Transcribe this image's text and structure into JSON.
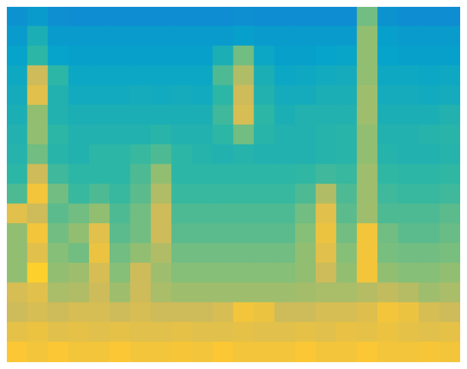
{
  "chart_data": {
    "type": "heatmap",
    "grid": false,
    "tick_labels": false,
    "cells": [
      [
        0.27,
        0.3,
        0.26,
        0.25,
        0.25,
        0.25,
        0.25,
        0.25,
        0.25,
        0.25,
        0.25,
        0.26,
        0.25,
        0.25,
        0.25,
        0.25,
        0.25,
        0.55,
        0.27,
        0.25,
        0.25,
        0.25
      ],
      [
        0.3,
        0.4,
        0.3,
        0.3,
        0.3,
        0.3,
        0.3,
        0.3,
        0.3,
        0.3,
        0.3,
        0.32,
        0.3,
        0.3,
        0.3,
        0.3,
        0.3,
        0.6,
        0.32,
        0.3,
        0.3,
        0.3
      ],
      [
        0.33,
        0.45,
        0.33,
        0.32,
        0.32,
        0.32,
        0.32,
        0.32,
        0.32,
        0.32,
        0.4,
        0.55,
        0.35,
        0.32,
        0.32,
        0.33,
        0.34,
        0.6,
        0.33,
        0.32,
        0.32,
        0.32
      ],
      [
        0.36,
        0.7,
        0.45,
        0.35,
        0.35,
        0.35,
        0.35,
        0.35,
        0.35,
        0.35,
        0.5,
        0.65,
        0.4,
        0.35,
        0.36,
        0.37,
        0.38,
        0.6,
        0.36,
        0.36,
        0.35,
        0.36
      ],
      [
        0.38,
        0.75,
        0.42,
        0.37,
        0.37,
        0.37,
        0.38,
        0.37,
        0.38,
        0.37,
        0.45,
        0.7,
        0.42,
        0.38,
        0.38,
        0.4,
        0.4,
        0.62,
        0.38,
        0.38,
        0.37,
        0.38
      ],
      [
        0.4,
        0.6,
        0.42,
        0.4,
        0.4,
        0.4,
        0.4,
        0.4,
        0.4,
        0.4,
        0.48,
        0.72,
        0.45,
        0.4,
        0.42,
        0.42,
        0.42,
        0.62,
        0.4,
        0.4,
        0.4,
        0.42
      ],
      [
        0.42,
        0.6,
        0.45,
        0.42,
        0.42,
        0.42,
        0.42,
        0.44,
        0.42,
        0.42,
        0.45,
        0.55,
        0.44,
        0.42,
        0.42,
        0.43,
        0.44,
        0.6,
        0.42,
        0.42,
        0.43,
        0.44
      ],
      [
        0.43,
        0.55,
        0.44,
        0.42,
        0.45,
        0.45,
        0.47,
        0.5,
        0.45,
        0.43,
        0.42,
        0.43,
        0.42,
        0.42,
        0.42,
        0.43,
        0.44,
        0.6,
        0.43,
        0.42,
        0.42,
        0.43
      ],
      [
        0.45,
        0.7,
        0.48,
        0.45,
        0.45,
        0.45,
        0.5,
        0.6,
        0.45,
        0.45,
        0.45,
        0.45,
        0.45,
        0.45,
        0.46,
        0.48,
        0.47,
        0.62,
        0.46,
        0.45,
        0.45,
        0.46
      ],
      [
        0.5,
        0.8,
        0.55,
        0.47,
        0.5,
        0.47,
        0.52,
        0.65,
        0.47,
        0.47,
        0.47,
        0.47,
        0.47,
        0.47,
        0.5,
        0.65,
        0.5,
        0.62,
        0.48,
        0.47,
        0.47,
        0.48
      ],
      [
        0.75,
        0.7,
        0.52,
        0.55,
        0.6,
        0.5,
        0.55,
        0.7,
        0.5,
        0.5,
        0.5,
        0.5,
        0.5,
        0.5,
        0.55,
        0.75,
        0.52,
        0.62,
        0.5,
        0.5,
        0.5,
        0.52
      ],
      [
        0.6,
        0.8,
        0.55,
        0.6,
        0.75,
        0.52,
        0.55,
        0.7,
        0.52,
        0.52,
        0.52,
        0.52,
        0.52,
        0.52,
        0.58,
        0.78,
        0.55,
        0.8,
        0.55,
        0.52,
        0.52,
        0.54
      ],
      [
        0.6,
        0.75,
        0.58,
        0.55,
        0.78,
        0.55,
        0.6,
        0.65,
        0.55,
        0.55,
        0.55,
        0.55,
        0.55,
        0.55,
        0.6,
        0.75,
        0.58,
        0.8,
        0.56,
        0.55,
        0.55,
        0.56
      ],
      [
        0.6,
        0.85,
        0.6,
        0.62,
        0.72,
        0.58,
        0.7,
        0.62,
        0.58,
        0.58,
        0.58,
        0.58,
        0.58,
        0.58,
        0.6,
        0.7,
        0.6,
        0.8,
        0.6,
        0.58,
        0.58,
        0.6
      ],
      [
        0.72,
        0.75,
        0.64,
        0.65,
        0.7,
        0.62,
        0.7,
        0.64,
        0.62,
        0.62,
        0.62,
        0.62,
        0.62,
        0.62,
        0.63,
        0.64,
        0.64,
        0.66,
        0.68,
        0.66,
        0.62,
        0.64
      ],
      [
        0.7,
        0.72,
        0.7,
        0.72,
        0.72,
        0.7,
        0.72,
        0.7,
        0.7,
        0.7,
        0.72,
        0.8,
        0.78,
        0.7,
        0.7,
        0.72,
        0.72,
        0.74,
        0.8,
        0.78,
        0.72,
        0.7
      ],
      [
        0.76,
        0.78,
        0.75,
        0.76,
        0.75,
        0.76,
        0.75,
        0.75,
        0.76,
        0.75,
        0.75,
        0.76,
        0.75,
        0.75,
        0.76,
        0.75,
        0.77,
        0.76,
        0.78,
        0.76,
        0.75,
        0.76
      ],
      [
        0.82,
        0.8,
        0.82,
        0.8,
        0.8,
        0.82,
        0.8,
        0.8,
        0.81,
        0.8,
        0.82,
        0.8,
        0.8,
        0.8,
        0.82,
        0.8,
        0.8,
        0.82,
        0.8,
        0.8,
        0.81,
        0.8
      ]
    ]
  }
}
